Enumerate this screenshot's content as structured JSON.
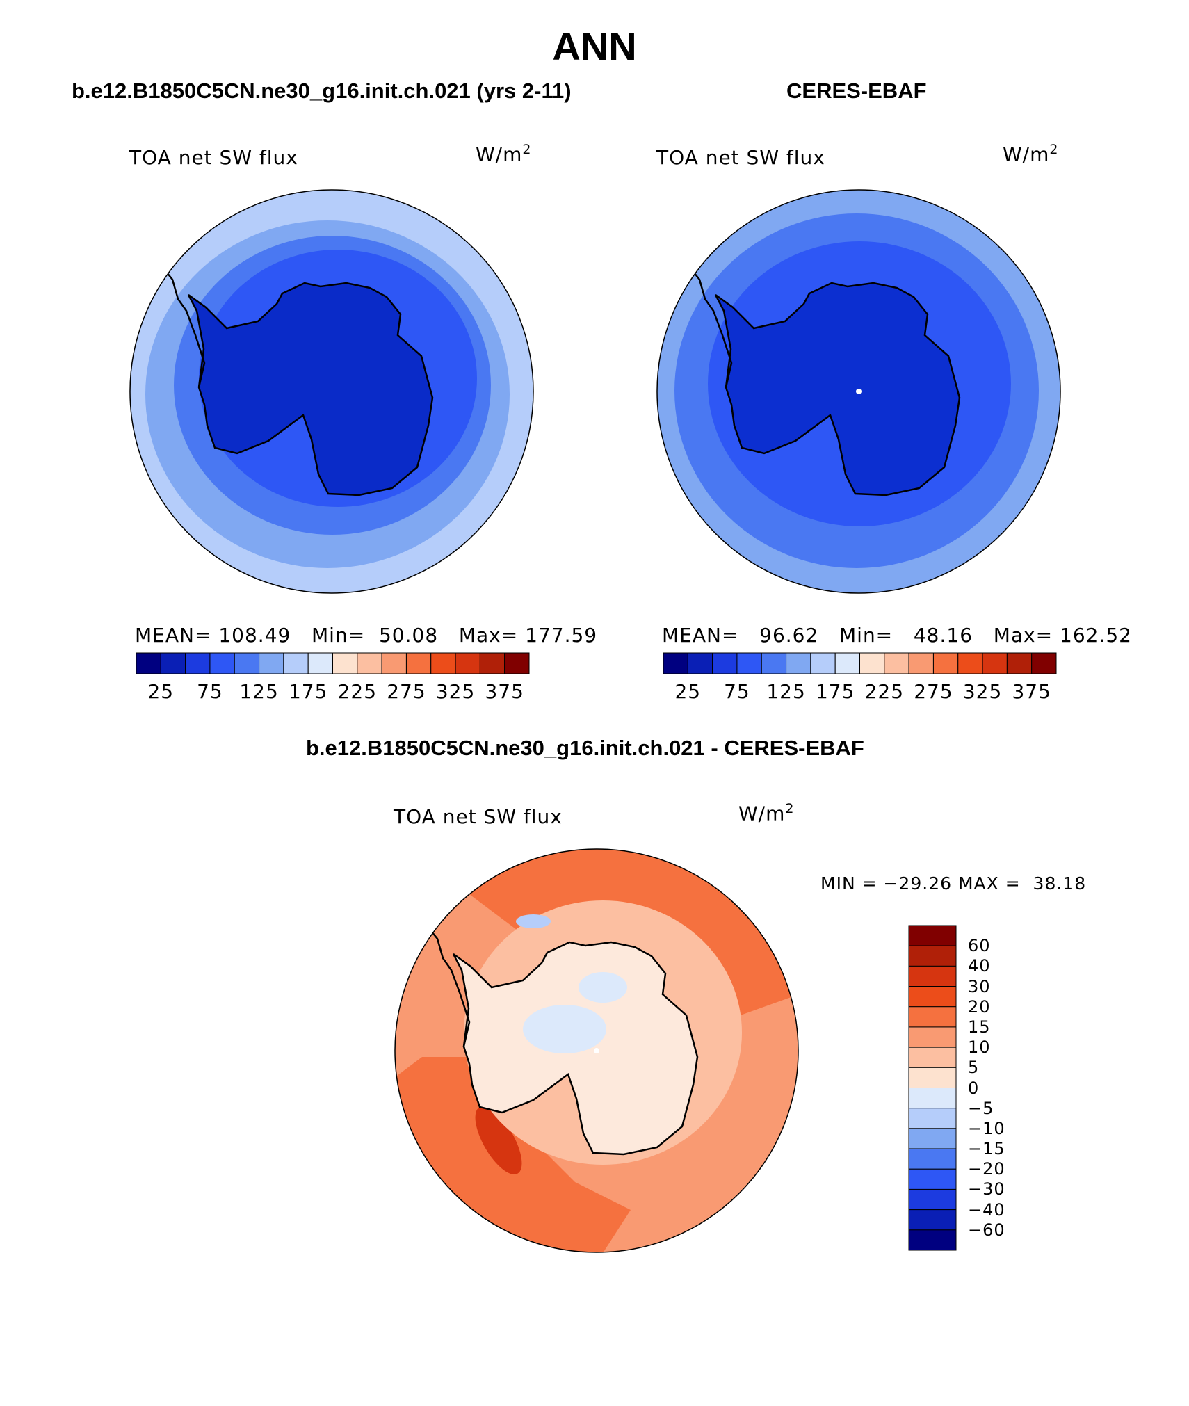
{
  "page_title": "ANN",
  "panels": [
    {
      "case_title": "b.e12.B1850C5CN.ne30_g16.init.ch.021 (yrs 2-11)",
      "variable": "TOA net SW flux",
      "units_base": "W/m",
      "units_exp": "2",
      "stats": {
        "mean_label": "MEAN=",
        "mean": "108.49",
        "min_label": "Min=",
        "min": "50.08",
        "max_label": "Max=",
        "max": "177.59"
      },
      "colorbar_ticks": [
        "25",
        "75",
        "125",
        "175",
        "225",
        "275",
        "325",
        "375"
      ]
    },
    {
      "case_title": "CERES-EBAF",
      "variable": "TOA net SW flux",
      "units_base": "W/m",
      "units_exp": "2",
      "stats": {
        "mean_label": "MEAN=",
        "mean": "96.62",
        "min_label": "Min=",
        "min": "48.16",
        "max_label": "Max=",
        "max": "162.52"
      },
      "colorbar_ticks": [
        "25",
        "75",
        "125",
        "175",
        "225",
        "275",
        "325",
        "375"
      ]
    }
  ],
  "difference": {
    "title": "b.e12.B1850C5CN.ne30_g16.init.ch.021 - CERES-EBAF",
    "variable": "TOA net SW flux",
    "units_base": "W/m",
    "units_exp": "2",
    "min_max_text": "MIN = −29.26 MAX =  38.18",
    "colorbar_labels": [
      "60",
      "40",
      "30",
      "20",
      "15",
      "10",
      "5",
      "0",
      "−5",
      "−10",
      "−15",
      "−20",
      "−30",
      "−40",
      "−60"
    ]
  },
  "colors": {
    "abs_scale": [
      "#000080",
      "#0a1fb5",
      "#1c3be0",
      "#2e57f5",
      "#4a78f2",
      "#80a8f2",
      "#b5cdfa",
      "#dce9fb",
      "#fde2cf",
      "#fcbfa1",
      "#f99a72",
      "#f5713f",
      "#ec4d1a",
      "#d63510",
      "#b02008",
      "#800000"
    ],
    "diff_scale": [
      "#800000",
      "#b02008",
      "#d63510",
      "#ec4d1a",
      "#f5713f",
      "#f99a72",
      "#fcbfa1",
      "#fde2cf",
      "#dce9fb",
      "#b5cdfa",
      "#80a8f2",
      "#4a78f2",
      "#2e57f5",
      "#1c3be0",
      "#0a1fb5",
      "#000080"
    ],
    "antarctica_model": "#0a2bc8",
    "antarctica_obs": "#0c2fd0",
    "antarctica_diff": "#fde9dc"
  }
}
